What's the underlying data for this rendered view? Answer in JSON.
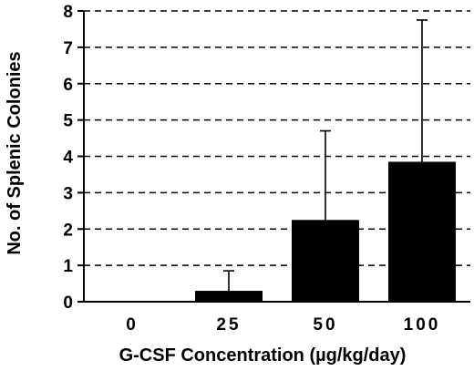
{
  "chart_data": {
    "type": "bar",
    "categories": [
      "0",
      "25",
      "50",
      "100"
    ],
    "values": [
      0,
      0.3,
      2.25,
      3.85
    ],
    "error_upper": [
      0,
      0.85,
      4.7,
      7.75
    ],
    "xlabel": "G-CSF Concentration (µg/kg/day)",
    "ylabel": "No. of Splenic Colonies",
    "ylim": [
      0,
      8
    ],
    "yticks": [
      "0",
      "1",
      "2",
      "3",
      "4",
      "5",
      "6",
      "7",
      "8"
    ],
    "grid": "horizontal dashed",
    "colors": {
      "bar": "#000000",
      "axis": "#000000",
      "grid": "#000000"
    }
  }
}
